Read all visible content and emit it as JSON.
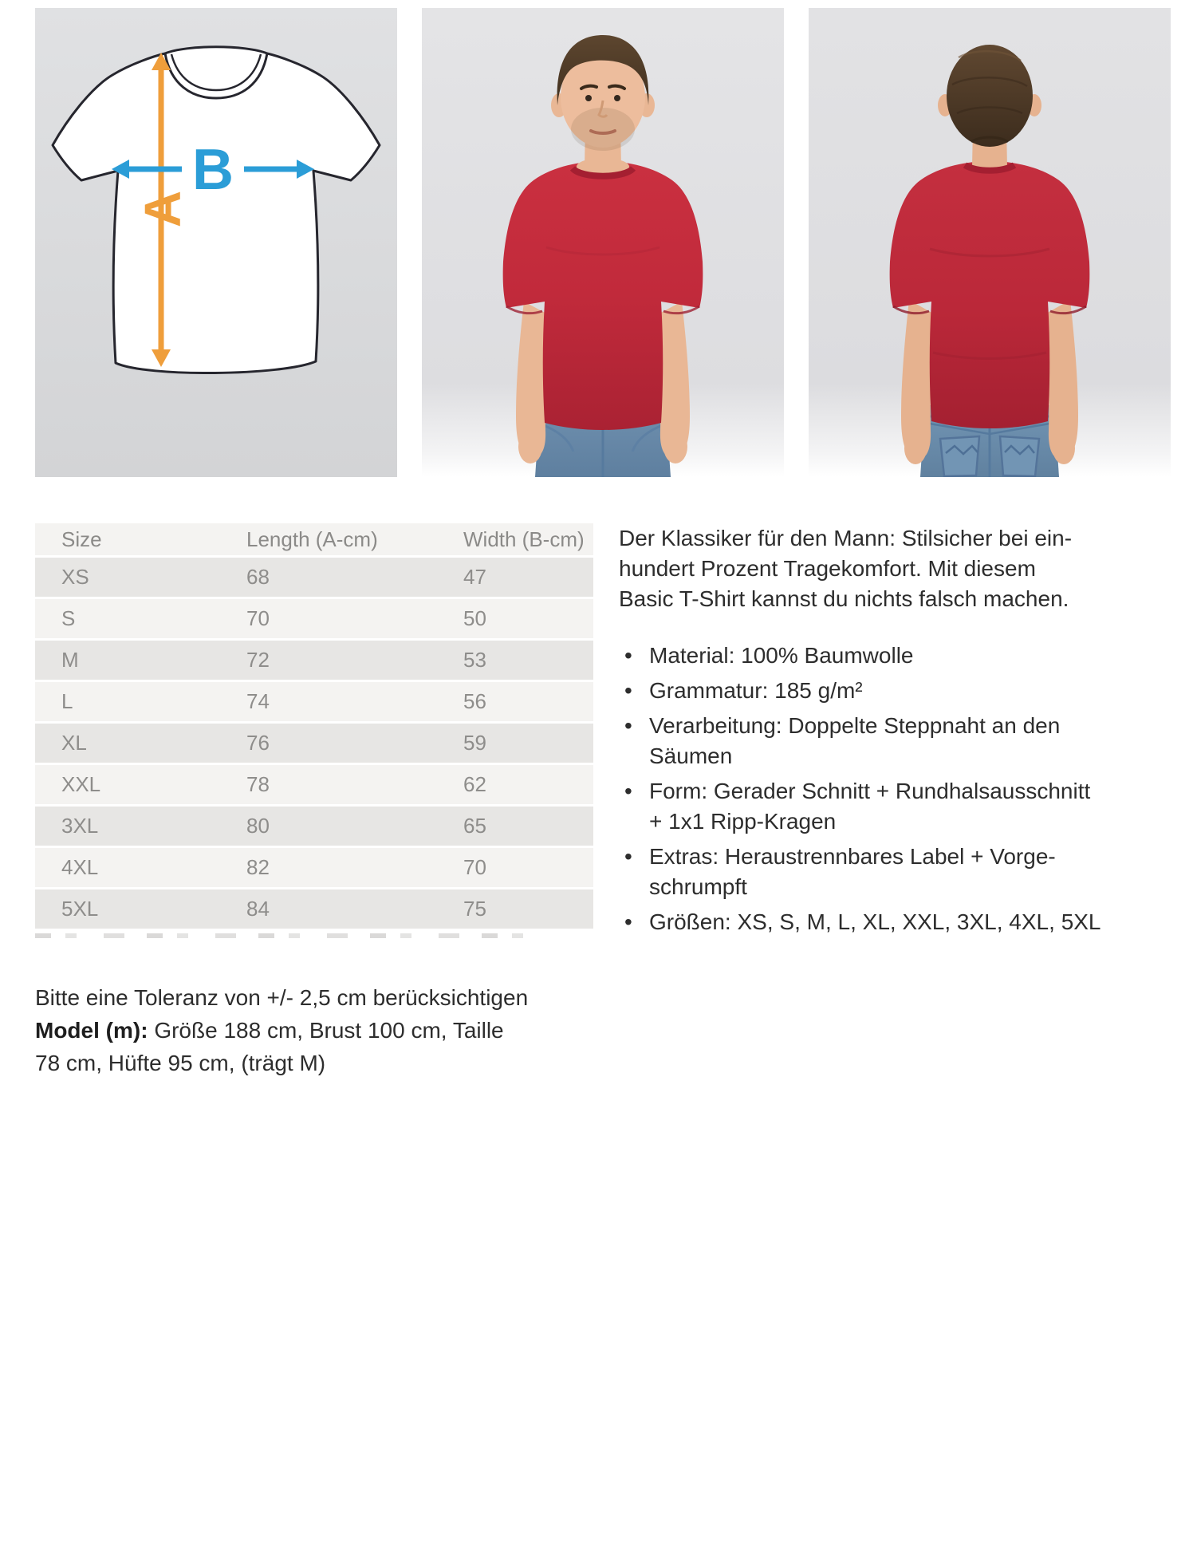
{
  "diagram": {
    "length_label": "A",
    "width_label": "B",
    "length_arrow_color": "#EF9E3B",
    "width_arrow_color": "#2B9DD7"
  },
  "photos": {
    "shirt_color": "#C12A3B",
    "jeans_color": "#6E8FAE"
  },
  "table": {
    "columns": [
      "Size",
      "Length (A-cm)",
      "Width (B-cm)"
    ],
    "rows": [
      [
        "XS",
        "68",
        "47"
      ],
      [
        "S",
        "70",
        "50"
      ],
      [
        "M",
        "72",
        "53"
      ],
      [
        "L",
        "74",
        "56"
      ],
      [
        "XL",
        "76",
        "59"
      ],
      [
        "XXL",
        "78",
        "62"
      ],
      [
        "3XL",
        "80",
        "65"
      ],
      [
        "4XL",
        "82",
        "70"
      ],
      [
        "5XL",
        "84",
        "75"
      ]
    ],
    "row_colors": {
      "odd": "#E7E6E4",
      "even": "#F4F3F1",
      "header": "#F4F3F1"
    }
  },
  "description": {
    "intro_lines": [
      "Der Klassiker für den Mann: Stilsicher bei ein-",
      "hundert Prozent Tragekomfort. Mit diesem",
      "Basic T-Shirt kannst du nichts falsch machen."
    ],
    "bullets": [
      [
        "Material: 100% Baumwolle"
      ],
      [
        "Grammatur: 185 g/m²"
      ],
      [
        "Verarbeitung: Doppelte Steppnaht an den",
        "Säumen"
      ],
      [
        "Form: Gerader Schnitt + Rundhalsausschnitt",
        "+ 1x1 Ripp-Kragen"
      ],
      [
        "Extras: Heraustrennbares Label + Vorge-",
        "schrumpft"
      ],
      [
        "Größen: XS, S, M, L, XL, XXL, 3XL, 4XL, 5XL"
      ]
    ]
  },
  "notes": {
    "tolerance": "Bitte eine Toleranz von +/- 2,5 cm berücksichtigen",
    "model_label": "Model (m):",
    "model_lines": [
      "Größe 188 cm, Brust 100 cm, Taille",
      "78 cm, Hüfte 95 cm, (trägt M)"
    ]
  }
}
